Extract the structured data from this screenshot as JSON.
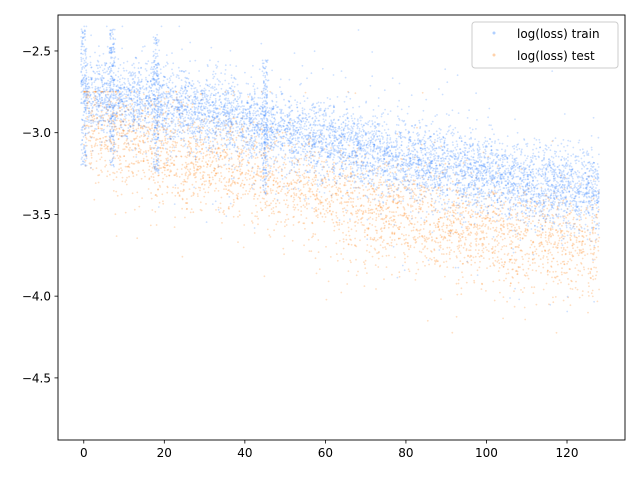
{
  "chart_data": {
    "type": "scatter",
    "title": "",
    "xlabel": "",
    "ylabel": "",
    "xlim": [
      -6.4,
      134.4
    ],
    "ylim": [
      -4.88,
      -2.28
    ],
    "xticks": [
      0,
      20,
      40,
      60,
      80,
      100,
      120
    ],
    "yticks": [
      -2.5,
      -3.0,
      -3.5,
      -4.0,
      -4.5
    ],
    "xtick_labels": [
      "0",
      "20",
      "40",
      "60",
      "80",
      "100",
      "120"
    ],
    "ytick_labels": [
      "−2.5",
      "−3.0",
      "−3.5",
      "−4.0",
      "−4.5"
    ],
    "grid": false,
    "legend_position": "upper right",
    "x_range_of_points": [
      0,
      128
    ],
    "series": [
      {
        "name": "log(loss) train",
        "color": "#1f77ff",
        "marker": "small dot, low alpha",
        "trend_x": [
          0,
          10,
          20,
          30,
          40,
          50,
          60,
          70,
          80,
          90,
          100,
          110,
          120,
          128
        ],
        "trend_y": [
          -2.78,
          -2.79,
          -2.83,
          -2.88,
          -2.93,
          -2.99,
          -3.05,
          -3.11,
          -3.16,
          -3.21,
          -3.26,
          -3.31,
          -3.34,
          -3.36
        ],
        "spread": 0.12,
        "spikes_x": [
          0,
          7,
          18,
          45
        ],
        "outlier_range": [
          -4.4,
          -2.35
        ]
      },
      {
        "name": "log(loss) test",
        "color": "#ff7f0e",
        "marker": "small dot, low alpha",
        "trend_x": [
          0,
          10,
          20,
          30,
          40,
          50,
          60,
          70,
          80,
          90,
          100,
          110,
          120,
          128
        ],
        "trend_y": [
          -2.95,
          -3.02,
          -3.1,
          -3.17,
          -3.24,
          -3.32,
          -3.39,
          -3.46,
          -3.52,
          -3.57,
          -3.62,
          -3.66,
          -3.68,
          -3.7
        ],
        "spread": 0.16,
        "outlier_range": [
          -4.55,
          -2.75
        ]
      }
    ]
  }
}
